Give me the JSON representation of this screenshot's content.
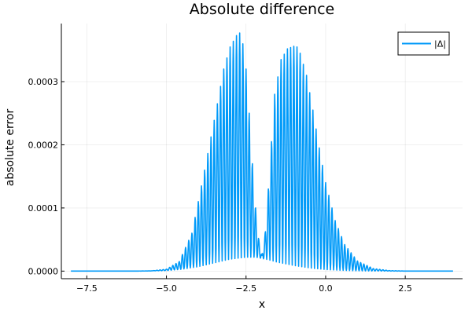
{
  "chart_data": {
    "type": "line",
    "title": "Absolute difference",
    "xlabel": "x",
    "ylabel": "absolute error",
    "xlim": [
      -8.3,
      4.3
    ],
    "ylim": [
      -1.2e-05,
      0.000392
    ],
    "x_ticks": [
      -7.5,
      -5.0,
      -2.5,
      0.0,
      2.5
    ],
    "x_tick_labels": [
      "−7.5",
      "−5.0",
      "−2.5",
      "0.0",
      "2.5"
    ],
    "y_ticks": [
      0.0,
      0.0001,
      0.0002,
      0.0003
    ],
    "y_tick_labels": [
      "0.0000",
      "0.0001",
      "0.0002",
      "0.0003"
    ],
    "grid": true,
    "legend_position": "top-right",
    "series": [
      {
        "name": "|Δ|",
        "color": "#009af9",
        "oscillating": true,
        "x_range": [
          -8.0,
          4.0
        ],
        "upper_envelope": {
          "x": [
            -8.0,
            -6.0,
            -5.5,
            -5.0,
            -4.6,
            -4.2,
            -3.8,
            -3.4,
            -3.2,
            -3.0,
            -2.8,
            -2.7,
            -2.6,
            -2.5,
            -2.4,
            -2.3,
            -2.2,
            -2.1,
            -2.0,
            -1.9,
            -1.8,
            -1.6,
            -1.4,
            -1.2,
            -1.0,
            -0.9,
            -0.8,
            -0.6,
            -0.4,
            -0.2,
            0.0,
            0.3,
            0.6,
            1.0,
            1.5,
            2.0,
            2.5,
            3.0,
            4.0
          ],
          "y": [
            0.0,
            0.0,
            2e-07,
            3e-06,
            1.5e-05,
            6e-05,
            0.00016,
            0.000265,
            0.00032,
            0.000355,
            0.000373,
            0.000377,
            0.00036,
            0.00032,
            0.00025,
            0.00017,
            0.0001,
            5e-05,
            2.5e-05,
            6e-05,
            0.00013,
            0.00028,
            0.000335,
            0.000352,
            0.000356,
            0.000355,
            0.000345,
            0.00031,
            0.000255,
            0.000195,
            0.00014,
            8e-05,
            4.2e-05,
            1.6e-05,
            4e-06,
            8e-07,
            1e-07,
            0.0,
            0.0
          ]
        },
        "lower_envelope": {
          "x": [
            -8.0,
            -6.0,
            -5.0,
            -4.5,
            -4.0,
            -3.5,
            -3.0,
            -2.5,
            -2.2,
            -2.0,
            -1.8,
            -1.5,
            -1.0,
            -0.5,
            0.0,
            0.5,
            1.0,
            1.5,
            2.0,
            2.5,
            3.0,
            4.0
          ],
          "y": [
            0.0,
            0.0,
            8e-07,
            3e-06,
            7e-06,
            1.3e-05,
            1.9e-05,
            2.2e-05,
            2.2e-05,
            2e-05,
            1.8e-05,
            1.4e-05,
            9e-06,
            5e-06,
            2.5e-06,
            1.2e-06,
            5e-07,
            2e-07,
            1e-07,
            0.0,
            0.0,
            0.0
          ]
        }
      }
    ]
  }
}
